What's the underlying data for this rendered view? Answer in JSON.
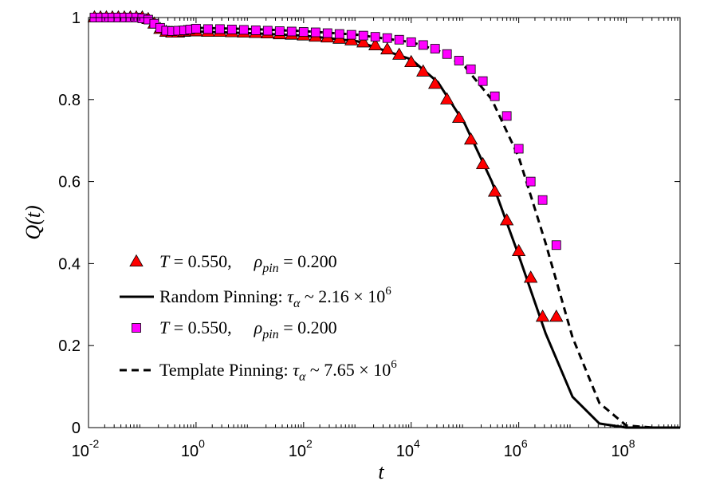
{
  "chart_data": {
    "type": "line",
    "xscale": "log",
    "xlabel": "t",
    "ylabel": "Q(t)",
    "xlim": [
      0.01,
      1000000000
    ],
    "ylim": [
      0,
      1
    ],
    "x_ticks": [
      {
        "base": "10",
        "exp": "-2"
      },
      {
        "base": "10",
        "exp": "0"
      },
      {
        "base": "10",
        "exp": "2"
      },
      {
        "base": "10",
        "exp": "4"
      },
      {
        "base": "10",
        "exp": "6"
      },
      {
        "base": "10",
        "exp": "8"
      }
    ],
    "x_tick_values": [
      0.01,
      1,
      100,
      10000,
      1000000,
      100000000
    ],
    "y_ticks": [
      "0",
      "0.2",
      "0.4",
      "0.6",
      "0.8",
      "1"
    ],
    "y_tick_values": [
      0,
      0.2,
      0.4,
      0.6,
      0.8,
      1
    ],
    "series": [
      {
        "name": "T = 0.550, ρpin = 0.200 (Random Pinning)",
        "kind": "markers",
        "marker": "triangle",
        "color": "#ff0000",
        "x": [
          0.0129,
          0.0167,
          0.0215,
          0.0278,
          0.0359,
          0.0464,
          0.0599,
          0.0774,
          0.1,
          0.129,
          0.167,
          0.215,
          0.278,
          0.359,
          0.464,
          0.599,
          0.774,
          1,
          1.67,
          2.78,
          4.64,
          7.74,
          12.9,
          21.5,
          35.9,
          59.9,
          100,
          167,
          278,
          464,
          774,
          1290,
          2150,
          3590,
          5990,
          10000,
          16700,
          27800,
          46400,
          77400,
          129000,
          215000,
          359000,
          599000,
          1000000,
          1670000,
          2780000,
          5000000
        ],
        "y": [
          1.0,
          1.0,
          1.0,
          1.0,
          1.0,
          1.0,
          1.0,
          1.0,
          1.0,
          0.996,
          0.985,
          0.972,
          0.965,
          0.963,
          0.963,
          0.965,
          0.966,
          0.966,
          0.965,
          0.965,
          0.964,
          0.963,
          0.962,
          0.961,
          0.959,
          0.958,
          0.956,
          0.953,
          0.951,
          0.948,
          0.944,
          0.939,
          0.932,
          0.922,
          0.909,
          0.891,
          0.868,
          0.838,
          0.8,
          0.755,
          0.702,
          0.642,
          0.575,
          0.505,
          0.43,
          0.365,
          0.27,
          0.27
        ]
      },
      {
        "name": "Random Pinning: τα ~ 2.16 × 10^6",
        "kind": "line",
        "dash": "solid",
        "color": "#000000",
        "x": [
          1,
          10,
          100,
          1000,
          10000,
          31600,
          100000,
          316000,
          1000000,
          3160000,
          10000000,
          31600000,
          100000000,
          316000000,
          1000000000
        ],
        "y": [
          0.966,
          0.962,
          0.956,
          0.942,
          0.898,
          0.842,
          0.74,
          0.6,
          0.42,
          0.23,
          0.075,
          0.01,
          0.0,
          0.0,
          0.0
        ]
      },
      {
        "name": "T = 0.550, ρpin = 0.200 (Template Pinning)",
        "kind": "markers",
        "marker": "square",
        "color": "#ff00ff",
        "x": [
          0.0129,
          0.0167,
          0.0215,
          0.0278,
          0.0359,
          0.0464,
          0.0599,
          0.0774,
          0.1,
          0.129,
          0.167,
          0.215,
          0.278,
          0.359,
          0.464,
          0.599,
          0.774,
          1,
          1.67,
          2.78,
          4.64,
          7.74,
          12.9,
          21.5,
          35.9,
          59.9,
          100,
          167,
          278,
          464,
          774,
          1290,
          2150,
          3590,
          5990,
          10000,
          16700,
          27800,
          46400,
          77400,
          129000,
          215000,
          359000,
          599000,
          1000000,
          1670000,
          2780000,
          5000000
        ],
        "y": [
          1.0,
          1.0,
          1.0,
          1.0,
          1.0,
          1.0,
          1.0,
          1.0,
          0.998,
          0.995,
          0.985,
          0.975,
          0.968,
          0.967,
          0.968,
          0.969,
          0.971,
          0.973,
          0.972,
          0.972,
          0.971,
          0.97,
          0.969,
          0.968,
          0.967,
          0.966,
          0.965,
          0.964,
          0.962,
          0.96,
          0.958,
          0.956,
          0.953,
          0.95,
          0.946,
          0.94,
          0.933,
          0.924,
          0.911,
          0.895,
          0.874,
          0.845,
          0.808,
          0.76,
          0.68,
          0.6,
          0.555,
          0.445
        ]
      },
      {
        "name": "Template Pinning: τα ~ 7.65 × 10^6",
        "kind": "line",
        "dash": "dashed",
        "color": "#000000",
        "x": [
          1,
          10,
          100,
          1000,
          10000,
          31600,
          100000,
          316000,
          1000000,
          3160000,
          10000000,
          31600000,
          100000000,
          316000000,
          1000000000
        ],
        "y": [
          0.975,
          0.972,
          0.967,
          0.958,
          0.94,
          0.92,
          0.88,
          0.8,
          0.66,
          0.45,
          0.22,
          0.06,
          0.005,
          0.0,
          0.0
        ]
      }
    ],
    "legend": {
      "location": "lower-left",
      "entries": [
        {
          "marker": "triangle",
          "color": "#ff0000",
          "prefix": "T = 0.550,",
          "sym": "ρ",
          "sub": "pin",
          "value": " = 0.200"
        },
        {
          "line": "solid",
          "label": "Random Pinning: ",
          "sym": "τ",
          "sub": "α",
          "approx": " ~ 2.16 × 10",
          "sup": "6"
        },
        {
          "marker": "square",
          "color": "#ff00ff",
          "prefix": "T = 0.550,",
          "sym": "ρ",
          "sub": "pin",
          "value": " = 0.200"
        },
        {
          "line": "dashed",
          "label": "Template Pinning: ",
          "sym": "τ",
          "sub": "α",
          "approx": " ~ 7.65 × 10",
          "sup": "6"
        }
      ]
    }
  }
}
